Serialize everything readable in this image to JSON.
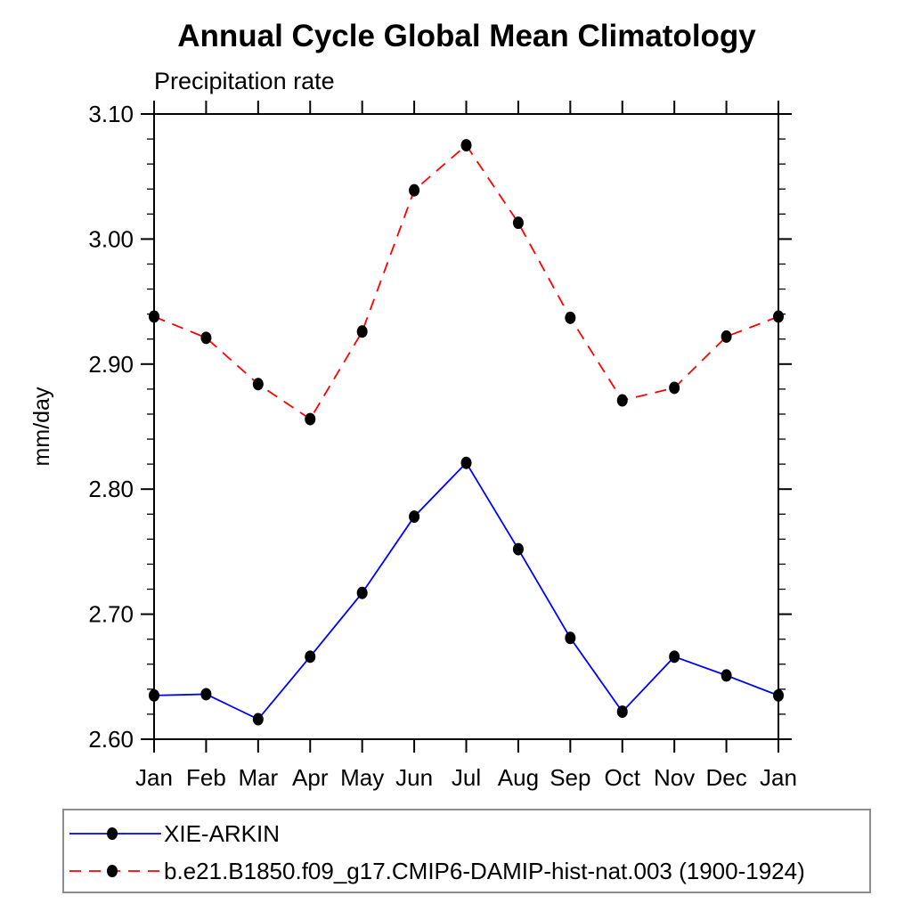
{
  "page": {
    "background_color": "#ffffff"
  },
  "chart_data": {
    "type": "line",
    "title": "Annual Cycle Global Mean Climatology",
    "subtitle": "Precipitation rate",
    "ylabel": "mm/day",
    "categories": [
      "Jan",
      "Feb",
      "Mar",
      "Apr",
      "May",
      "Jun",
      "Jul",
      "Aug",
      "Sep",
      "Oct",
      "Nov",
      "Dec",
      "Jan"
    ],
    "ylim": [
      2.6,
      3.1
    ],
    "y_tick_labels": [
      "2.60",
      "2.70",
      "2.80",
      "2.90",
      "3.00",
      "3.10"
    ],
    "y_major_step": 0.1,
    "y_minor_step": 0.02,
    "grid": false,
    "legend_position": "bottom-left",
    "frame_color": "#000000",
    "marker": "filled-circle",
    "marker_color": "#000000",
    "series": [
      {
        "name": "XIE-ARKIN",
        "color": "#0000ff",
        "line_style": "solid",
        "values": [
          2.635,
          2.636,
          2.616,
          2.666,
          2.717,
          2.778,
          2.821,
          2.752,
          2.681,
          2.622,
          2.666,
          2.651,
          2.635
        ]
      },
      {
        "name": "b.e21.B1850.f09_g17.CMIP6-DAMIP-hist-nat.003 (1900-1924)",
        "color": "#ff0000",
        "line_style": "dashed",
        "values": [
          2.938,
          2.921,
          2.884,
          2.856,
          2.926,
          3.039,
          3.075,
          3.013,
          2.937,
          2.871,
          2.881,
          2.922,
          2.938
        ]
      }
    ]
  }
}
